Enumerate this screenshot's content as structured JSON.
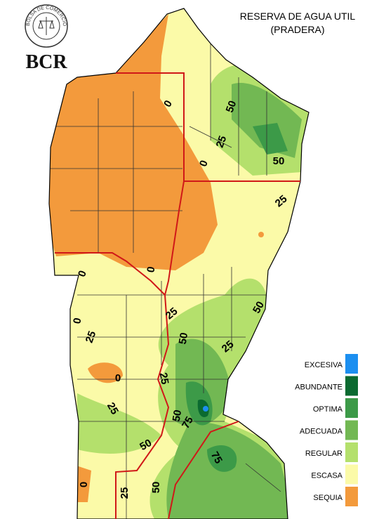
{
  "logo": {
    "ring_text": "BOLSA DE COMERCIO DE ROSARIO",
    "abbr": "BCR"
  },
  "title": "RESERVA DE AGUA UTIL",
  "subtitle": "(PRADERA)",
  "legend": [
    {
      "label": "EXCESIVA",
      "color": "#1c8ff0"
    },
    {
      "label": "ABUNDANTE",
      "color": "#0b6a30"
    },
    {
      "label": "OPTIMA",
      "color": "#3c9a48"
    },
    {
      "label": "ADECUADA",
      "color": "#72b853"
    },
    {
      "label": "REGULAR",
      "color": "#b4e06c"
    },
    {
      "label": "ESCASA",
      "color": "#fbfaa8"
    },
    {
      "label": "SEQUIA",
      "color": "#f39a3c"
    }
  ],
  "contour_labels": [
    "0",
    "50",
    "25",
    "0",
    "50",
    "25",
    "0",
    "0",
    "50",
    "25",
    "0",
    "25",
    "50",
    "25",
    "0",
    "25",
    "25",
    "50",
    "75",
    "50",
    "75",
    "0",
    "25",
    "50"
  ]
}
